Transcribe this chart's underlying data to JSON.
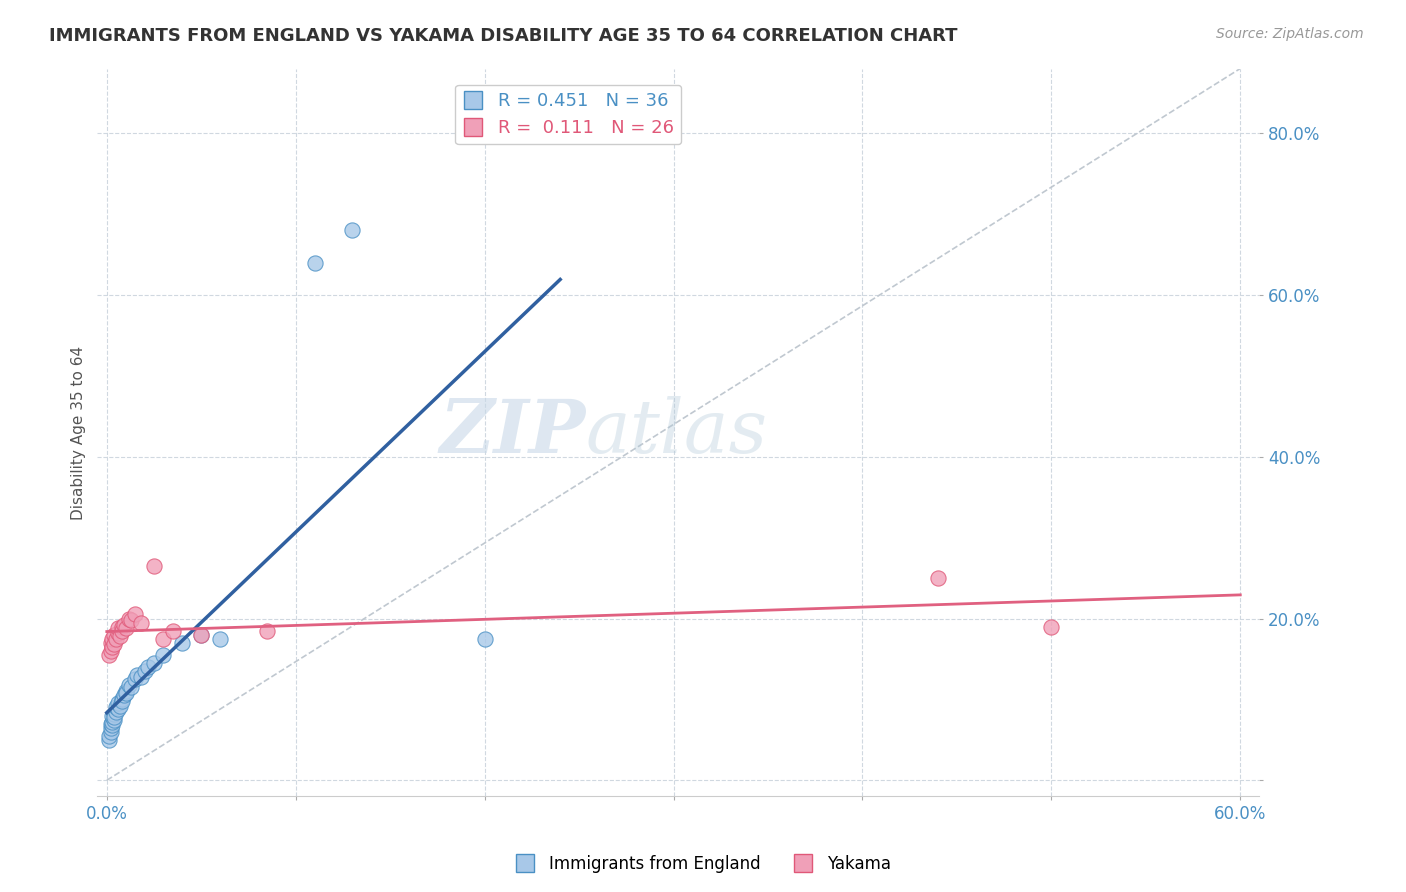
{
  "title": "IMMIGRANTS FROM ENGLAND VS YAKAMA DISABILITY AGE 35 TO 64 CORRELATION CHART",
  "source": "Source: ZipAtlas.com",
  "ylabel": "Disability Age 35 to 64",
  "legend_label1": "Immigrants from England",
  "legend_label2": "Yakama",
  "r1": 0.451,
  "n1": 36,
  "r2": 0.111,
  "n2": 26,
  "color_blue": "#A8C8E8",
  "color_pink": "#F0A0B8",
  "color_blue_text": "#4A90C4",
  "color_pink_text": "#E05878",
  "color_dashed_ref": "#C0C8D0",
  "color_line_blue": "#3060A0",
  "color_line_pink": "#E06080",
  "watermark_zip": "ZIP",
  "watermark_atlas": "atlas",
  "blue_points": [
    [
      0.001,
      0.05
    ],
    [
      0.001,
      0.055
    ],
    [
      0.002,
      0.06
    ],
    [
      0.002,
      0.065
    ],
    [
      0.002,
      0.07
    ],
    [
      0.003,
      0.068
    ],
    [
      0.003,
      0.072
    ],
    [
      0.003,
      0.08
    ],
    [
      0.004,
      0.075
    ],
    [
      0.004,
      0.082
    ],
    [
      0.004,
      0.078
    ],
    [
      0.005,
      0.085
    ],
    [
      0.005,
      0.09
    ],
    [
      0.006,
      0.088
    ],
    [
      0.006,
      0.095
    ],
    [
      0.007,
      0.092
    ],
    [
      0.008,
      0.1
    ],
    [
      0.008,
      0.098
    ],
    [
      0.009,
      0.105
    ],
    [
      0.01,
      0.11
    ],
    [
      0.01,
      0.108
    ],
    [
      0.012,
      0.118
    ],
    [
      0.013,
      0.115
    ],
    [
      0.015,
      0.125
    ],
    [
      0.016,
      0.13
    ],
    [
      0.018,
      0.128
    ],
    [
      0.02,
      0.135
    ],
    [
      0.022,
      0.14
    ],
    [
      0.025,
      0.145
    ],
    [
      0.03,
      0.155
    ],
    [
      0.04,
      0.17
    ],
    [
      0.05,
      0.18
    ],
    [
      0.06,
      0.175
    ],
    [
      0.11,
      0.64
    ],
    [
      0.13,
      0.68
    ],
    [
      0.2,
      0.175
    ]
  ],
  "pink_points": [
    [
      0.001,
      0.155
    ],
    [
      0.002,
      0.16
    ],
    [
      0.002,
      0.17
    ],
    [
      0.003,
      0.165
    ],
    [
      0.003,
      0.175
    ],
    [
      0.004,
      0.18
    ],
    [
      0.004,
      0.168
    ],
    [
      0.005,
      0.175
    ],
    [
      0.006,
      0.182
    ],
    [
      0.006,
      0.188
    ],
    [
      0.007,
      0.178
    ],
    [
      0.008,
      0.19
    ],
    [
      0.008,
      0.185
    ],
    [
      0.009,
      0.192
    ],
    [
      0.01,
      0.188
    ],
    [
      0.012,
      0.2
    ],
    [
      0.013,
      0.198
    ],
    [
      0.015,
      0.205
    ],
    [
      0.018,
      0.195
    ],
    [
      0.025,
      0.265
    ],
    [
      0.03,
      0.175
    ],
    [
      0.035,
      0.185
    ],
    [
      0.05,
      0.18
    ],
    [
      0.085,
      0.185
    ],
    [
      0.44,
      0.25
    ],
    [
      0.5,
      0.19
    ]
  ],
  "xlim": [
    -0.005,
    0.61
  ],
  "ylim": [
    -0.02,
    0.88
  ],
  "xticks": [
    0.0,
    0.1,
    0.2,
    0.3,
    0.4,
    0.5,
    0.6
  ],
  "yticks": [
    0.0,
    0.2,
    0.4,
    0.6,
    0.8
  ],
  "ytick_labels": [
    "",
    "20.0%",
    "40.0%",
    "60.0%",
    "80.0%"
  ],
  "xtick_labels_left": "0.0%",
  "xtick_labels_right": "60.0%"
}
